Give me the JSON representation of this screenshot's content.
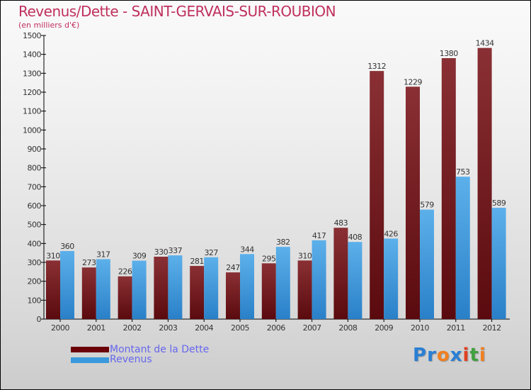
{
  "chart_data": {
    "type": "bar",
    "title": "Revenus/Dette - SAINT-GERVAIS-SUR-ROUBION",
    "subtitle": "(en milliers d'€)",
    "categories": [
      "2000",
      "2001",
      "2002",
      "2003",
      "2004",
      "2005",
      "2006",
      "2007",
      "2008",
      "2009",
      "2010",
      "2011",
      "2012"
    ],
    "series": [
      {
        "name": "Montant de la Dette",
        "color": "#7a1f22",
        "values": [
          310,
          273,
          226,
          330,
          281,
          247,
          295,
          310,
          483,
          1312,
          1229,
          1380,
          1434
        ]
      },
      {
        "name": "Revenus",
        "color": "#4aa3e3",
        "values": [
          360,
          317,
          309,
          337,
          327,
          344,
          382,
          417,
          408,
          426,
          579,
          753,
          589
        ]
      }
    ],
    "ylim": [
      0,
      1500
    ],
    "yticks": [
      0,
      100,
      200,
      300,
      400,
      500,
      600,
      700,
      800,
      900,
      1000,
      1100,
      1200,
      1300,
      1400,
      1500
    ],
    "legend": "bottom-left"
  },
  "logo": {
    "text": [
      "P",
      "r",
      "o",
      "x",
      "i",
      "t",
      "i"
    ],
    "colors": [
      "#2a7fd4",
      "#2a7fd4",
      "#f08020",
      "#2a7fd4",
      "#e04020",
      "#40a040",
      "#f08020"
    ]
  }
}
